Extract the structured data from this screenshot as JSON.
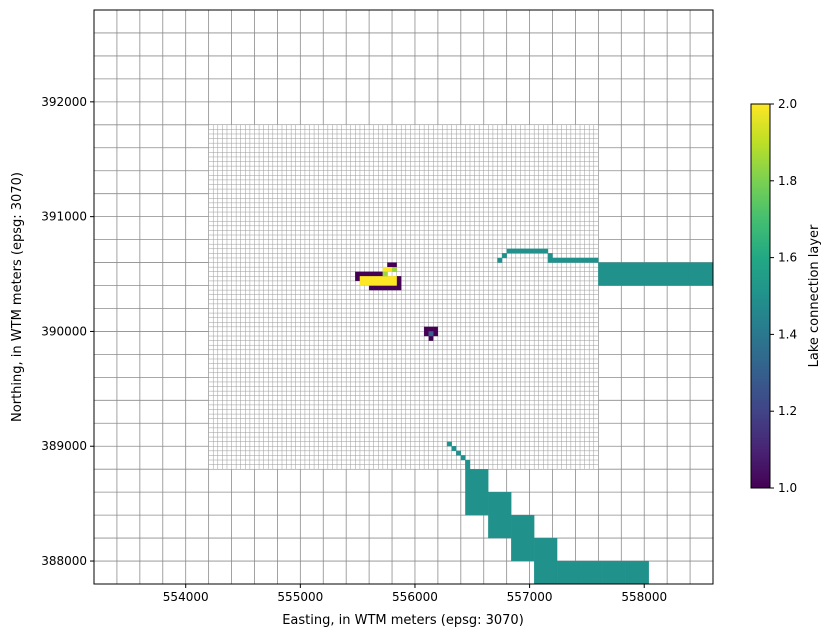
{
  "chart_data": {
    "type": "heatmap",
    "title": "",
    "xlabel": "Easting, in WTM meters (epsg: 3070)",
    "ylabel": "Northing, in WTM meters (epsg: 3070)",
    "xlim": [
      553200,
      558600
    ],
    "ylim": [
      387800,
      392800
    ],
    "xticks": [
      554000,
      555000,
      556000,
      557000,
      558000
    ],
    "yticks": [
      388000,
      389000,
      390000,
      391000,
      392000
    ],
    "grid": true,
    "colorbar": {
      "label": "Lake connection layer",
      "min": 1.0,
      "max": 2.0,
      "ticks": [
        "1.0",
        "1.2",
        "1.4",
        "1.6",
        "1.8",
        "2.0"
      ],
      "colormap": "viridis"
    },
    "coarse_cell_size": 200,
    "refined_region": {
      "x": [
        554200,
        557600
      ],
      "y": [
        388800,
        391800
      ],
      "cell_size": 40
    },
    "connections": [
      {
        "layer": 1.5,
        "cells": [
          [
            556440,
            388400,
            556640,
            388800
          ],
          [
            556640,
            388200,
            556840,
            388600
          ],
          [
            556840,
            388000,
            557040,
            388400
          ],
          [
            557040,
            387800,
            557240,
            388200
          ],
          [
            557240,
            387800,
            557440,
            388000
          ],
          [
            557440,
            387800,
            557640,
            388000
          ],
          [
            557640,
            387800,
            557840,
            388000
          ],
          [
            557840,
            387800,
            558040,
            388000
          ],
          [
            557600,
            390400,
            557800,
            390600
          ],
          [
            557800,
            390400,
            558000,
            390600
          ],
          [
            558000,
            390400,
            558200,
            390600
          ],
          [
            558200,
            390400,
            558400,
            390600
          ],
          [
            558400,
            390400,
            558600,
            390600
          ],
          [
            556480,
            388760,
            556520,
            388800
          ],
          [
            556440,
            388800,
            556480,
            388840
          ],
          [
            556440,
            388840,
            556480,
            388880
          ],
          [
            556400,
            388880,
            556440,
            388920
          ],
          [
            556360,
            388920,
            556400,
            388960
          ],
          [
            556320,
            388960,
            556360,
            389000
          ],
          [
            556280,
            389000,
            556320,
            389040
          ],
          [
            556720,
            390600,
            556760,
            390640
          ],
          [
            556760,
            390640,
            556800,
            390680
          ],
          [
            556800,
            390680,
            556840,
            390720
          ],
          [
            556840,
            390680,
            556880,
            390720
          ],
          [
            556880,
            390680,
            556920,
            390720
          ],
          [
            556920,
            390680,
            556960,
            390720
          ],
          [
            556960,
            390680,
            557000,
            390720
          ],
          [
            557000,
            390680,
            557040,
            390720
          ],
          [
            557040,
            390680,
            557080,
            390720
          ],
          [
            557080,
            390680,
            557120,
            390720
          ],
          [
            557120,
            390680,
            557160,
            390720
          ],
          [
            557160,
            390640,
            557200,
            390680
          ],
          [
            557160,
            390600,
            557200,
            390640
          ],
          [
            557200,
            390600,
            557240,
            390640
          ],
          [
            557240,
            390600,
            557280,
            390640
          ],
          [
            557280,
            390600,
            557320,
            390640
          ],
          [
            557320,
            390600,
            557360,
            390640
          ],
          [
            557360,
            390600,
            557400,
            390640
          ],
          [
            557400,
            390600,
            557440,
            390640
          ],
          [
            557440,
            390600,
            557480,
            390640
          ],
          [
            557480,
            390600,
            557520,
            390640
          ],
          [
            557520,
            390600,
            557560,
            390640
          ],
          [
            557560,
            390600,
            557600,
            390640
          ]
        ]
      },
      {
        "layer": 1.0,
        "cells": [
          [
            555480,
            390480,
            555520,
            390520
          ],
          [
            555520,
            390480,
            555560,
            390520
          ],
          [
            555560,
            390480,
            555600,
            390520
          ],
          [
            555600,
            390480,
            555640,
            390520
          ],
          [
            555640,
            390480,
            555680,
            390520
          ],
          [
            555680,
            390480,
            555720,
            390520
          ],
          [
            555480,
            390440,
            555520,
            390480
          ],
          [
            555760,
            390560,
            555800,
            390600
          ],
          [
            555800,
            390560,
            555840,
            390600
          ],
          [
            555840,
            390440,
            555880,
            390480
          ],
          [
            555840,
            390400,
            555880,
            390440
          ],
          [
            555600,
            390360,
            555640,
            390400
          ],
          [
            555640,
            390360,
            555680,
            390400
          ],
          [
            555680,
            390360,
            555720,
            390400
          ],
          [
            555720,
            390360,
            555760,
            390400
          ],
          [
            555760,
            390360,
            555800,
            390400
          ],
          [
            555800,
            390360,
            555840,
            390400
          ],
          [
            555840,
            390360,
            555880,
            390400
          ],
          [
            556080,
            390000,
            556120,
            390040
          ],
          [
            556120,
            390000,
            556160,
            390040
          ],
          [
            556160,
            390000,
            556200,
            390040
          ],
          [
            556080,
            389960,
            556120,
            390000
          ],
          [
            556160,
            389960,
            556200,
            390000
          ],
          [
            556120,
            389920,
            556160,
            389960
          ]
        ]
      },
      {
        "layer": 2.0,
        "cells": [
          [
            555720,
            390520,
            555760,
            390560
          ],
          [
            555760,
            390520,
            555800,
            390560
          ],
          [
            555520,
            390400,
            555840,
            390480
          ]
        ]
      },
      {
        "layer": 1.85,
        "cells": [
          [
            555800,
            390520,
            555840,
            390560
          ],
          [
            555720,
            390480,
            555760,
            390520
          ]
        ]
      },
      {
        "layer": 1.3,
        "cells": [
          [
            556120,
            389960,
            556160,
            390000
          ]
        ]
      }
    ]
  }
}
